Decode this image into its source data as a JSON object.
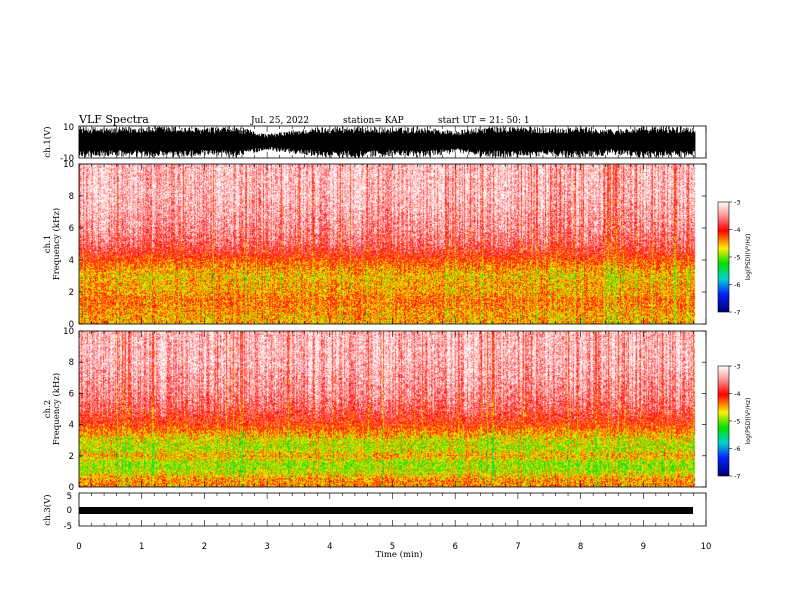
{
  "header": {
    "title": "VLF Spectra",
    "date": "Jul. 25, 2022",
    "station": "station= KAP",
    "start": "start  UT =   21: 50: 1"
  },
  "panels": {
    "ch1_wave": {
      "ylabel": "ch.1(V)",
      "yticks": [
        "10",
        "-10"
      ]
    },
    "ch1_spec": {
      "ylabel": "ch.1\nFrequency (kHz)",
      "yticks": [
        "0",
        "2",
        "4",
        "6",
        "8",
        "10"
      ]
    },
    "ch2_spec": {
      "ylabel": "ch.2\nFrequency (kHz)",
      "yticks": [
        "0",
        "2",
        "4",
        "6",
        "8",
        "10"
      ]
    },
    "ch3_wave": {
      "ylabel": "ch.3(V)",
      "yticks": [
        "5",
        "0",
        "-5"
      ]
    }
  },
  "xaxis": {
    "label": "Time (min)",
    "ticks": [
      "0",
      "1",
      "2",
      "3",
      "4",
      "5",
      "6",
      "7",
      "8",
      "9",
      "10"
    ]
  },
  "colorbar": {
    "label": "log(PSD)(V²/Hz)",
    "ticks": [
      "-3",
      "-4",
      "-5",
      "-6",
      "-7"
    ],
    "colors": [
      "#ffffff",
      "#ff8080",
      "#ff0000",
      "#ffff00",
      "#00ff00",
      "#00c0ff",
      "#0000ff",
      "#000060"
    ]
  },
  "chart_data": [
    {
      "type": "line",
      "name": "ch.1 waveform",
      "ylabel": "ch.1(V)",
      "xlabel": "Time (min)",
      "xlim": [
        0,
        10
      ],
      "ylim": [
        -10,
        10
      ],
      "data_end_min": 9.83,
      "amplitude_envelope": {
        "x": [
          0.0,
          0.5,
          1.0,
          1.5,
          2.0,
          2.5,
          3.0,
          3.5,
          4.0,
          4.5,
          5.0,
          5.5,
          6.0,
          6.5,
          7.0,
          7.5,
          8.0,
          8.5,
          9.0,
          9.5,
          9.83
        ],
        "max": [
          10,
          9,
          10,
          10,
          9,
          10,
          5,
          8,
          10,
          10,
          9,
          10,
          7,
          10,
          10,
          9,
          10,
          8,
          10,
          10,
          10
        ],
        "min": [
          -10,
          -9,
          -10,
          -10,
          -9,
          -10,
          -5,
          -8,
          -10,
          -10,
          -9,
          -10,
          -7,
          -10,
          -10,
          -9,
          -10,
          -8,
          -10,
          -10,
          -10
        ]
      }
    },
    {
      "type": "heatmap",
      "name": "ch.1 spectrogram",
      "xlabel": "Time (min)",
      "ylabel": "Frequency (kHz)",
      "xlim": [
        0,
        10
      ],
      "ylim": [
        0,
        10
      ],
      "data_end_min": 9.83,
      "color_scale": "log(PSD)(V²/Hz)",
      "clim": [
        -7,
        -3
      ],
      "freq_khz": [
        0.5,
        1.0,
        1.5,
        2.0,
        2.5,
        3.0,
        3.5,
        4.0,
        4.5,
        5.0,
        6.0,
        7.0,
        8.0,
        9.0,
        10.0
      ],
      "log_psd_typical": [
        -4.5,
        -4.4,
        -4.3,
        -4.5,
        -4.5,
        -4.6,
        -4.4,
        -4.2,
        -3.9,
        -3.7,
        -3.5,
        -3.4,
        -3.3,
        -3.3,
        -3.3
      ]
    },
    {
      "type": "heatmap",
      "name": "ch.2 spectrogram",
      "xlabel": "Time (min)",
      "ylabel": "Frequency (kHz)",
      "xlim": [
        0,
        10
      ],
      "ylim": [
        0,
        10
      ],
      "data_end_min": 9.83,
      "color_scale": "log(PSD)(V²/Hz)",
      "clim": [
        -7,
        -3
      ],
      "freq_khz": [
        0.5,
        1.0,
        1.5,
        2.0,
        2.5,
        3.0,
        3.5,
        4.0,
        4.5,
        5.0,
        6.0,
        7.0,
        8.0,
        9.0,
        10.0
      ],
      "log_psd_typical": [
        -4.4,
        -4.8,
        -4.9,
        -4.5,
        -4.8,
        -4.7,
        -4.4,
        -4.1,
        -3.9,
        -3.7,
        -3.5,
        -3.4,
        -3.3,
        -3.3,
        -3.3
      ]
    },
    {
      "type": "line",
      "name": "ch.3 waveform",
      "ylabel": "ch.3(V)",
      "xlabel": "Time (min)",
      "xlim": [
        0,
        10
      ],
      "ylim": [
        -5,
        5
      ],
      "data_end_min": 9.83,
      "amplitude_envelope": {
        "x": [
          0.0,
          9.83
        ],
        "max": [
          -0.4,
          -0.4
        ],
        "min": [
          -1.2,
          -1.2
        ]
      }
    }
  ]
}
